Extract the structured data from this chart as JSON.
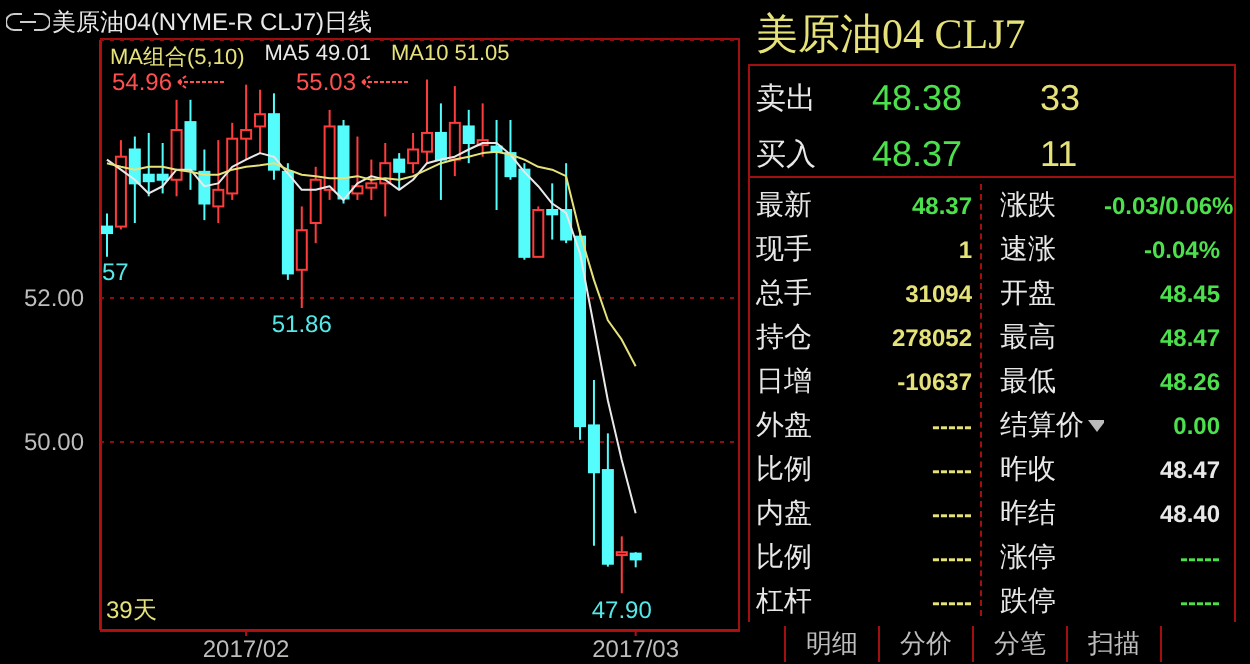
{
  "chart_data": [
    {
      "type": "candlestick",
      "title": "美原油04(NYME-R CLJ7)日线",
      "legend_title": "MA组合(5,10)",
      "legend": "top",
      "grid": "y",
      "categories": [
        null,
        null,
        null,
        null,
        null,
        null,
        null,
        null,
        null,
        null,
        "2017/02",
        null,
        null,
        null,
        null,
        null,
        null,
        null,
        null,
        null,
        null,
        null,
        null,
        null,
        null,
        null,
        null,
        null,
        null,
        null,
        null,
        null,
        null,
        null,
        null,
        null,
        null,
        null,
        "2017/03"
      ],
      "ohlc": [
        [
          52.99,
          53.17,
          52.57,
          52.9
        ],
        [
          52.99,
          54.19,
          52.95,
          53.96
        ],
        [
          54.06,
          54.24,
          53.04,
          53.59
        ],
        [
          53.71,
          54.29,
          53.41,
          53.62
        ],
        [
          53.71,
          54.15,
          53.45,
          53.64
        ],
        [
          53.64,
          54.75,
          53.41,
          54.33
        ],
        [
          54.44,
          54.75,
          53.5,
          53.78
        ],
        [
          53.75,
          54.06,
          53.08,
          53.31
        ],
        [
          53.27,
          54.19,
          53.04,
          53.5
        ],
        [
          53.45,
          54.43,
          53.36,
          54.21
        ],
        [
          54.21,
          54.96,
          53.92,
          54.33
        ],
        [
          54.38,
          54.89,
          54.01,
          54.55
        ],
        [
          54.55,
          54.84,
          53.64,
          53.78
        ],
        [
          53.75,
          53.87,
          52.25,
          52.34
        ],
        [
          52.39,
          53.27,
          51.86,
          52.94
        ],
        [
          53.04,
          53.82,
          52.76,
          53.64
        ],
        [
          53.5,
          54.61,
          53.36,
          54.38
        ],
        [
          54.38,
          54.47,
          53.31,
          53.38
        ],
        [
          53.45,
          54.24,
          53.36,
          53.55
        ],
        [
          53.53,
          53.92,
          53.36,
          53.59
        ],
        [
          53.59,
          54.15,
          53.13,
          53.87
        ],
        [
          53.92,
          54.01,
          53.5,
          53.75
        ],
        [
          53.87,
          54.29,
          53.73,
          54.06
        ],
        [
          54.03,
          55.03,
          53.87,
          54.29
        ],
        [
          54.29,
          54.7,
          53.36,
          53.92
        ],
        [
          53.92,
          54.94,
          53.69,
          54.43
        ],
        [
          54.38,
          54.61,
          53.87,
          54.15
        ],
        [
          54.12,
          54.7,
          53.96,
          54.19
        ],
        [
          54.1,
          54.47,
          53.22,
          54.03
        ],
        [
          54.01,
          54.47,
          53.64,
          53.69
        ],
        [
          53.78,
          53.87,
          52.53,
          52.57
        ],
        [
          52.57,
          53.27,
          52.57,
          53.22
        ],
        [
          53.22,
          53.59,
          52.81,
          53.16
        ],
        [
          53.22,
          53.87,
          52.76,
          52.81
        ],
        [
          52.85,
          52.94,
          50.03,
          50.22
        ],
        [
          50.23,
          50.86,
          48.56,
          49.58
        ],
        [
          49.61,
          50.12,
          48.27,
          48.31
        ],
        [
          48.43,
          48.69,
          47.9,
          48.47
        ],
        [
          48.45,
          48.47,
          48.26,
          48.37
        ]
      ],
      "colors": [
        "#54fcfc",
        "#ff3c3c",
        "#54fcfc",
        "#54fcfc",
        "#54fcfc",
        "#ff3c3c",
        "#54fcfc",
        "#54fcfc",
        "#ff3c3c",
        "#ff3c3c",
        "#ff3c3c",
        "#ff3c3c",
        "#54fcfc",
        "#54fcfc",
        "#ff3c3c",
        "#ff3c3c",
        "#ff3c3c",
        "#54fcfc",
        "#ff3c3c",
        "#ff3c3c",
        "#ff3c3c",
        "#54fcfc",
        "#ff3c3c",
        "#ff3c3c",
        "#54fcfc",
        "#ff3c3c",
        "#54fcfc",
        "#ff3c3c",
        "#54fcfc",
        "#54fcfc",
        "#54fcfc",
        "#ff3c3c",
        "#54fcfc",
        "#54fcfc",
        "#54fcfc",
        "#54fcfc",
        "#54fcfc",
        "#ff3c3c",
        "#54fcfc"
      ],
      "series": [
        {
          "type": "line",
          "name": "MA5 49.01",
          "color": "#e8e8e8",
          "values": [
            53.92,
            53.78,
            53.64,
            53.45,
            53.55,
            53.78,
            53.78,
            53.55,
            53.59,
            53.82,
            53.92,
            54.01,
            53.96,
            53.73,
            53.5,
            53.5,
            53.55,
            53.36,
            53.59,
            53.69,
            53.64,
            53.5,
            53.64,
            53.87,
            53.92,
            53.96,
            54.06,
            54.15,
            54.15,
            53.99,
            53.75,
            53.55,
            53.31,
            53.18,
            52.62,
            51.61,
            50.58,
            49.75,
            49.01
          ]
        },
        {
          "type": "line",
          "name": "MA10 51.05",
          "color": "#e6e27a",
          "values": [
            53.87,
            53.82,
            53.78,
            53.82,
            53.82,
            53.78,
            53.75,
            53.71,
            53.71,
            53.78,
            53.82,
            53.84,
            53.87,
            53.78,
            53.71,
            53.69,
            53.66,
            53.66,
            53.69,
            53.64,
            53.66,
            53.64,
            53.69,
            53.78,
            53.87,
            53.92,
            53.96,
            54.01,
            54.03,
            53.99,
            53.92,
            53.82,
            53.78,
            53.69,
            52.9,
            52.25,
            51.69,
            51.42,
            51.05
          ]
        }
      ],
      "ylim": [
        47.39,
        55.58
      ],
      "yticks": [
        {
          "value": 52,
          "label": "52.00"
        },
        {
          "value": 50,
          "label": "50.00"
        }
      ],
      "annotations": [
        "39天",
        "54.96",
        "55.03",
        {
          "text": "51.86",
          "y": 51.86
        },
        {
          "text": "47.90",
          "y": 47.9
        },
        {
          "text": "57",
          "y": 52.57
        }
      ]
    },
    {
      "type": "other",
      "title": "美原油04  CLJ7",
      "annotations": [
        "卖出",
        "48.38",
        "33",
        "买入",
        "48.37",
        "11",
        "最新",
        "48.37",
        "涨跌",
        "-0.03/0.06%",
        "现手",
        "1",
        "速涨",
        "-0.04%",
        "总手",
        "31094",
        "开盘",
        "48.45",
        "持仓",
        "278052",
        "最高",
        "48.47",
        "日增",
        "-10637",
        "最低",
        "48.26",
        "外盘",
        "-----",
        "结算价",
        "0.00",
        "比例",
        "-----",
        "昨收",
        "48.47",
        "内盘",
        "-----",
        "昨结",
        "48.40",
        "比例",
        "-----",
        "涨停",
        "-----",
        "杠杆",
        "-----",
        "跌停",
        "-----",
        "明细",
        "分价",
        "分笔",
        "扫描"
      ]
    }
  ]
}
